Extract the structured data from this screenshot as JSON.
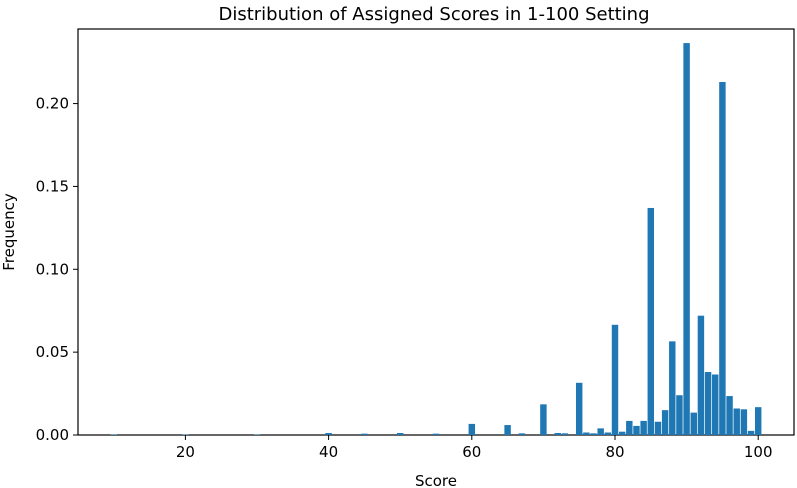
{
  "chart_data": {
    "type": "bar",
    "title": "Distribution of Assigned Scores in 1-100 Setting",
    "xlabel": "Score",
    "ylabel": "Frequency",
    "xlim": [
      5,
      105
    ],
    "ylim": [
      0,
      0.245
    ],
    "bin_width": 0.9,
    "x_ticks": [
      20,
      40,
      60,
      80,
      100
    ],
    "y_ticks": [
      0.0,
      0.05,
      0.1,
      0.15,
      0.2
    ],
    "x_tick_labels": [
      "20",
      "40",
      "60",
      "80",
      "100"
    ],
    "y_tick_labels": [
      "0.00",
      "0.05",
      "0.10",
      "0.15",
      "0.20"
    ],
    "grid": false,
    "bar_color": "#1f77b4",
    "bars": [
      {
        "x": 10,
        "value": 0.0003
      },
      {
        "x": 20,
        "value": 0.0003
      },
      {
        "x": 30,
        "value": 0.0003
      },
      {
        "x": 40,
        "value": 0.0012
      },
      {
        "x": 45,
        "value": 0.0008
      },
      {
        "x": 50,
        "value": 0.0012
      },
      {
        "x": 55,
        "value": 0.0008
      },
      {
        "x": 60,
        "value": 0.0067
      },
      {
        "x": 65,
        "value": 0.006
      },
      {
        "x": 67,
        "value": 0.001
      },
      {
        "x": 70,
        "value": 0.0185
      },
      {
        "x": 72,
        "value": 0.0012
      },
      {
        "x": 73,
        "value": 0.001
      },
      {
        "x": 75,
        "value": 0.0315
      },
      {
        "x": 76,
        "value": 0.0015
      },
      {
        "x": 77,
        "value": 0.001
      },
      {
        "x": 78,
        "value": 0.004
      },
      {
        "x": 79,
        "value": 0.0015
      },
      {
        "x": 80,
        "value": 0.0665
      },
      {
        "x": 81,
        "value": 0.002
      },
      {
        "x": 82,
        "value": 0.0085
      },
      {
        "x": 83,
        "value": 0.0055
      },
      {
        "x": 84,
        "value": 0.0085
      },
      {
        "x": 85,
        "value": 0.137
      },
      {
        "x": 86,
        "value": 0.008
      },
      {
        "x": 87,
        "value": 0.015
      },
      {
        "x": 88,
        "value": 0.0565
      },
      {
        "x": 89,
        "value": 0.024
      },
      {
        "x": 90,
        "value": 0.2365
      },
      {
        "x": 91,
        "value": 0.0135
      },
      {
        "x": 92,
        "value": 0.072
      },
      {
        "x": 93,
        "value": 0.038
      },
      {
        "x": 94,
        "value": 0.0365
      },
      {
        "x": 95,
        "value": 0.213
      },
      {
        "x": 96,
        "value": 0.0235
      },
      {
        "x": 97,
        "value": 0.016
      },
      {
        "x": 98,
        "value": 0.0155
      },
      {
        "x": 99,
        "value": 0.0025
      },
      {
        "x": 100,
        "value": 0.0168
      }
    ]
  }
}
